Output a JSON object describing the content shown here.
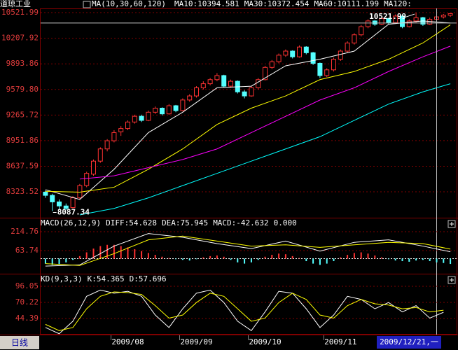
{
  "chart_data": [
    {
      "type": "candlestick",
      "title": "道琼工业",
      "indicator": "MA(10,30,60,120)",
      "up_color": "#ff3232",
      "down_color": "#54ffff",
      "ylim": [
        8006,
        10574
      ],
      "yticks": [
        10521.99,
        10207.92,
        9893.86,
        {
          "value": 9579.8,
          "label": "9579.80"
        },
        9265.72,
        8951.86,
        8637.59,
        8323.52
      ],
      "grid": true,
      "ohlc": [
        [
          8320,
          8340,
          8250,
          8280
        ],
        [
          8280,
          8300,
          8087.34,
          8200
        ],
        [
          8200,
          8230,
          8110,
          8150
        ],
        [
          8150,
          8180,
          8100,
          8120
        ],
        [
          8130,
          8270,
          8120,
          8250
        ],
        [
          8250,
          8420,
          8230,
          8400
        ],
        [
          8400,
          8570,
          8380,
          8550
        ],
        [
          8540,
          8720,
          8520,
          8700
        ],
        [
          8700,
          8870,
          8680,
          8850
        ],
        [
          8850,
          8970,
          8820,
          8950
        ],
        [
          8950,
          9080,
          8930,
          9050
        ],
        [
          9060,
          9130,
          9010,
          9100
        ],
        [
          9100,
          9200,
          9080,
          9180
        ],
        [
          9180,
          9270,
          9160,
          9250
        ],
        [
          9250,
          9270,
          9180,
          9200
        ],
        [
          9200,
          9320,
          9190,
          9300
        ],
        [
          9300,
          9370,
          9280,
          9350
        ],
        [
          9350,
          9360,
          9260,
          9280
        ],
        [
          9280,
          9400,
          9270,
          9380
        ],
        [
          9380,
          9390,
          9300,
          9320
        ],
        [
          9320,
          9470,
          9310,
          9450
        ],
        [
          9450,
          9520,
          9430,
          9500
        ],
        [
          9500,
          9620,
          9480,
          9600
        ],
        [
          9600,
          9680,
          9580,
          9650
        ],
        [
          9650,
          9720,
          9630,
          9700
        ],
        [
          9700,
          9780,
          9680,
          9750
        ],
        [
          9750,
          9760,
          9600,
          9620
        ],
        [
          9620,
          9700,
          9600,
          9680
        ],
        [
          9680,
          9690,
          9530,
          9550
        ],
        [
          9550,
          9570,
          9470,
          9500
        ],
        [
          9500,
          9620,
          9490,
          9600
        ],
        [
          9600,
          9720,
          9580,
          9700
        ],
        [
          9700,
          9870,
          9690,
          9850
        ],
        [
          9850,
          9940,
          9830,
          9920
        ],
        [
          9920,
          10020,
          9900,
          10000
        ],
        [
          10000,
          10070,
          9980,
          10050
        ],
        [
          10050,
          10060,
          9960,
          9980
        ],
        [
          9980,
          10120,
          9970,
          10100
        ],
        [
          10100,
          10110,
          10010,
          10030
        ],
        [
          10030,
          10040,
          9880,
          9900
        ],
        [
          9900,
          9910,
          9720,
          9750
        ],
        [
          9750,
          9840,
          9730,
          9820
        ],
        [
          9820,
          9970,
          9800,
          9950
        ],
        [
          9950,
          10070,
          9930,
          10050
        ],
        [
          10050,
          10170,
          10030,
          10150
        ],
        [
          10150,
          10270,
          10130,
          10250
        ],
        [
          10250,
          10370,
          10230,
          10350
        ],
        [
          10350,
          10440,
          10330,
          10420
        ],
        [
          10420,
          10430,
          10360,
          10380
        ],
        [
          10380,
          10470,
          10370,
          10450
        ],
        [
          10450,
          10460,
          10380,
          10400
        ],
        [
          10400,
          10500,
          10390,
          10480
        ],
        [
          10480,
          10490,
          10330,
          10350
        ],
        [
          10350,
          10440,
          10340,
          10420
        ],
        [
          10420,
          10521.99,
          10400,
          10460
        ],
        [
          10460,
          10470,
          10360,
          10380
        ],
        [
          10380,
          10460,
          10370,
          10440
        ],
        [
          10440,
          10490,
          10420,
          10470
        ],
        [
          10470,
          10505,
          10450,
          10490
        ],
        [
          10490,
          10515,
          10470,
          10510
        ]
      ],
      "x": [
        0,
        5,
        10,
        15,
        20,
        25,
        30,
        35,
        40,
        45,
        50,
        55,
        59
      ],
      "series": [
        {
          "name": "MA10:10394.581",
          "color": "#ffffff",
          "values": [
            8350,
            8230,
            8600,
            9050,
            9300,
            9600,
            9620,
            9870,
            9950,
            10050,
            10380,
            10420,
            10394.581
          ]
        },
        {
          "name": "MA30:10372.454",
          "color": "#ffff00",
          "values": [
            8330,
            8320,
            8380,
            8600,
            8850,
            9150,
            9350,
            9500,
            9700,
            9800,
            9950,
            10150,
            10372.454
          ]
        },
        {
          "name": "MA60:10111.199",
          "color": "#ff00ff",
          "values": [
            null,
            8480,
            8520,
            8620,
            8720,
            8850,
            9050,
            9250,
            9450,
            9600,
            9800,
            9980,
            10111.199
          ]
        },
        {
          "name": "MA120:",
          "color": "#00ffff",
          "values": [
            null,
            8040,
            8120,
            8250,
            8400,
            8550,
            8700,
            8850,
            9000,
            9200,
            9400,
            9550,
            9650
          ]
        }
      ],
      "extremes": [
        10521.99,
        8087.34
      ],
      "cursor": {
        "x": 57,
        "y": 10394.581
      }
    },
    {
      "type": "macd",
      "title": "MACD(26,12,9)",
      "ylim": [
        -115,
        243
      ],
      "yticks": [
        214.76,
        63.74
      ],
      "x": [
        0,
        5,
        10,
        15,
        20,
        25,
        30,
        35,
        40,
        45,
        50,
        55,
        59
      ],
      "series": [
        {
          "name": "DIFF:54.628",
          "color": "#ffffff",
          "values": [
            -60,
            -50,
            100,
            200,
            170,
            120,
            80,
            140,
            60,
            130,
            150,
            100,
            54.628
          ]
        },
        {
          "name": "DEA:75.945",
          "color": "#ffff00",
          "values": [
            -40,
            -55,
            40,
            150,
            180,
            140,
            100,
            110,
            90,
            110,
            130,
            120,
            75.945
          ]
        }
      ],
      "histogram": {
        "name": "MACD:-42.632",
        "color": "#ff00ff",
        "up_color": "#ff3232",
        "down_color": "#54ffff",
        "values": [
          -40,
          -50,
          -45,
          -30,
          -10,
          20,
          50,
          80,
          100,
          110,
          110,
          100,
          90,
          75,
          60,
          45,
          30,
          15,
          5,
          -5,
          -10,
          -15,
          -5,
          10,
          20,
          25,
          15,
          -10,
          -30,
          -40,
          -30,
          -10,
          15,
          30,
          40,
          35,
          20,
          5,
          -20,
          -40,
          -50,
          -40,
          -20,
          10,
          30,
          45,
          50,
          40,
          25,
          10,
          -5,
          -15,
          -20,
          -25,
          -15,
          -10,
          -20,
          -30,
          -35,
          -42.632
        ]
      },
      "zero_label": "0.000"
    },
    {
      "type": "kd",
      "title": "KD(9,3,3)",
      "ylim": [
        18.6,
        99.4
      ],
      "yticks": [
        96.05,
        70.22,
        44.39
      ],
      "x": [
        0,
        2,
        4,
        6,
        8,
        10,
        12,
        14,
        16,
        18,
        20,
        22,
        24,
        26,
        28,
        30,
        32,
        34,
        36,
        38,
        40,
        42,
        44,
        46,
        48,
        50,
        52,
        54,
        56,
        58
      ],
      "series": [
        {
          "name": "K:54.365",
          "color": "#ffffff",
          "values": [
            30,
            20,
            40,
            80,
            90,
            85,
            88,
            80,
            50,
            30,
            60,
            85,
            90,
            70,
            40,
            25,
            55,
            88,
            85,
            60,
            30,
            50,
            80,
            75,
            60,
            70,
            55,
            65,
            45,
            54.365
          ]
        },
        {
          "name": "D:57.696",
          "color": "#ffff00",
          "values": [
            35,
            25,
            30,
            60,
            80,
            87,
            86,
            83,
            65,
            45,
            50,
            70,
            85,
            80,
            60,
            40,
            45,
            70,
            85,
            75,
            50,
            45,
            65,
            75,
            68,
            66,
            60,
            62,
            55,
            57.696
          ]
        }
      ]
    }
  ],
  "x_axis": {
    "period": "日线",
    "xlim": [
      -0.5,
      59.5
    ],
    "xticks": [
      {
        "value": 12,
        "label": "2009/08"
      },
      {
        "value": 22,
        "label": "2009/09"
      },
      {
        "value": 32,
        "label": "2009/10"
      },
      {
        "value": 43,
        "label": "2009/11"
      }
    ],
    "cursor_date": "2009/12/21,一"
  }
}
